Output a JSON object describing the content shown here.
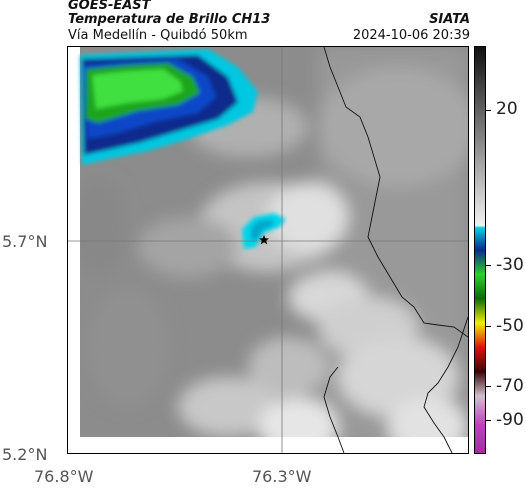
{
  "header": {
    "satellite": "GOES-EAST",
    "product": "Temperatura de Brillo CH13",
    "region": "Vía Medellín - Quibdó 50km",
    "source": "SIATA",
    "datetime": "2024-10-06 20:39"
  },
  "map": {
    "lat_labels": [
      "5.7°N",
      "5.2°N"
    ],
    "lon_labels": [
      "76.8°W",
      "76.3°W"
    ],
    "marker_icon": "star-icon"
  },
  "colorbar": {
    "ticks": [
      "20",
      "-30",
      "-50",
      "-70",
      "-90"
    ],
    "colors": {
      "warm_top": "#1a1a1a",
      "warm_bottom": "#f2f2f2",
      "cyan": "#00d0e8",
      "blue": "#0a2a8c",
      "green": "#2bd12b",
      "yellow": "#f0f000",
      "red": "#e01010",
      "dark": "#1a0505",
      "magenta": "#c040c0"
    }
  }
}
